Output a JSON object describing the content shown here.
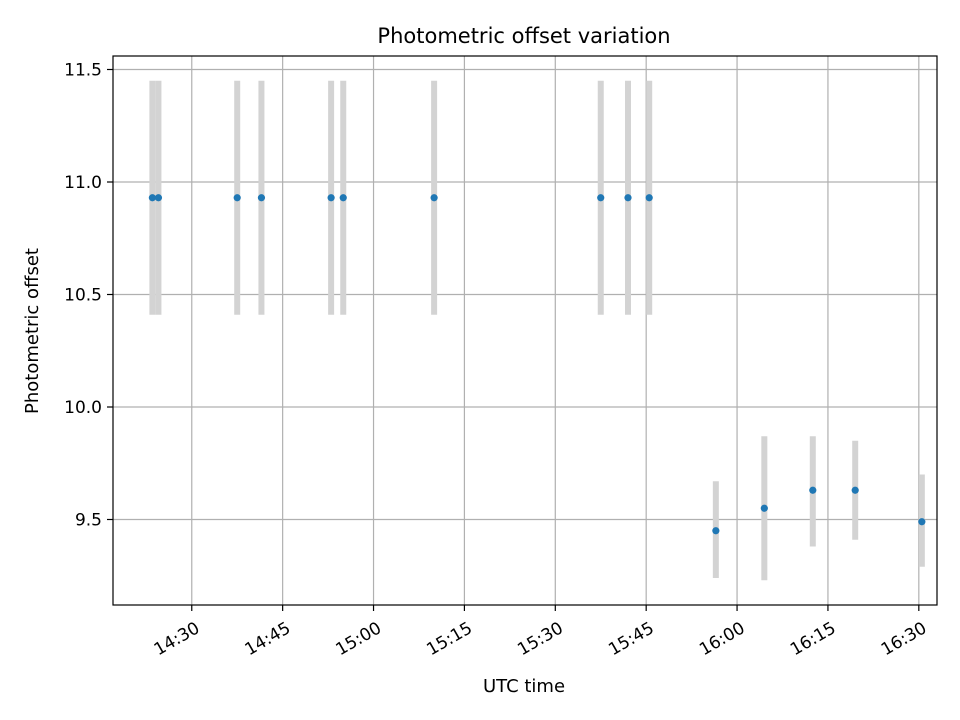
{
  "chart_data": {
    "type": "scatter",
    "title": "Photometric offset variation",
    "xlabel": "UTC time",
    "ylabel": "Photometric offset",
    "grid": true,
    "colors": {
      "point": "#1f77b4",
      "errorbar": "#d3d3d3",
      "grid": "#b0b0b0"
    },
    "xlim": [
      "14:17",
      "16:33"
    ],
    "ylim": [
      9.12,
      11.56
    ],
    "x_ticks": [
      "14:30",
      "14:45",
      "15:00",
      "15:15",
      "15:30",
      "15:45",
      "16:00",
      "16:15",
      "16:30"
    ],
    "y_ticks": [
      9.5,
      10.0,
      10.5,
      11.0,
      11.5
    ],
    "y_tick_labels": [
      "9.5",
      "10.0",
      "10.5",
      "11.0",
      "11.5"
    ],
    "series": [
      {
        "x": [
          "14:23:30",
          "14:24:30",
          "14:37:30",
          "14:41:30",
          "14:53:00",
          "14:55:00",
          "15:10:00",
          "15:37:30",
          "15:42:00",
          "15:45:30",
          "15:56:30",
          "16:04:30",
          "16:12:30",
          "16:19:30",
          "16:30:30"
        ],
        "y": [
          10.93,
          10.93,
          10.93,
          10.93,
          10.93,
          10.93,
          10.93,
          10.93,
          10.93,
          10.93,
          9.45,
          9.55,
          9.63,
          9.63,
          9.49
        ],
        "err_low": [
          10.41,
          10.41,
          10.41,
          10.41,
          10.41,
          10.41,
          10.41,
          10.41,
          10.41,
          10.41,
          9.24,
          9.23,
          9.38,
          9.41,
          9.29
        ],
        "err_high": [
          11.45,
          11.45,
          11.45,
          11.45,
          11.45,
          11.45,
          11.45,
          11.45,
          11.45,
          11.45,
          9.67,
          9.87,
          9.87,
          9.85,
          9.7
        ]
      }
    ]
  }
}
